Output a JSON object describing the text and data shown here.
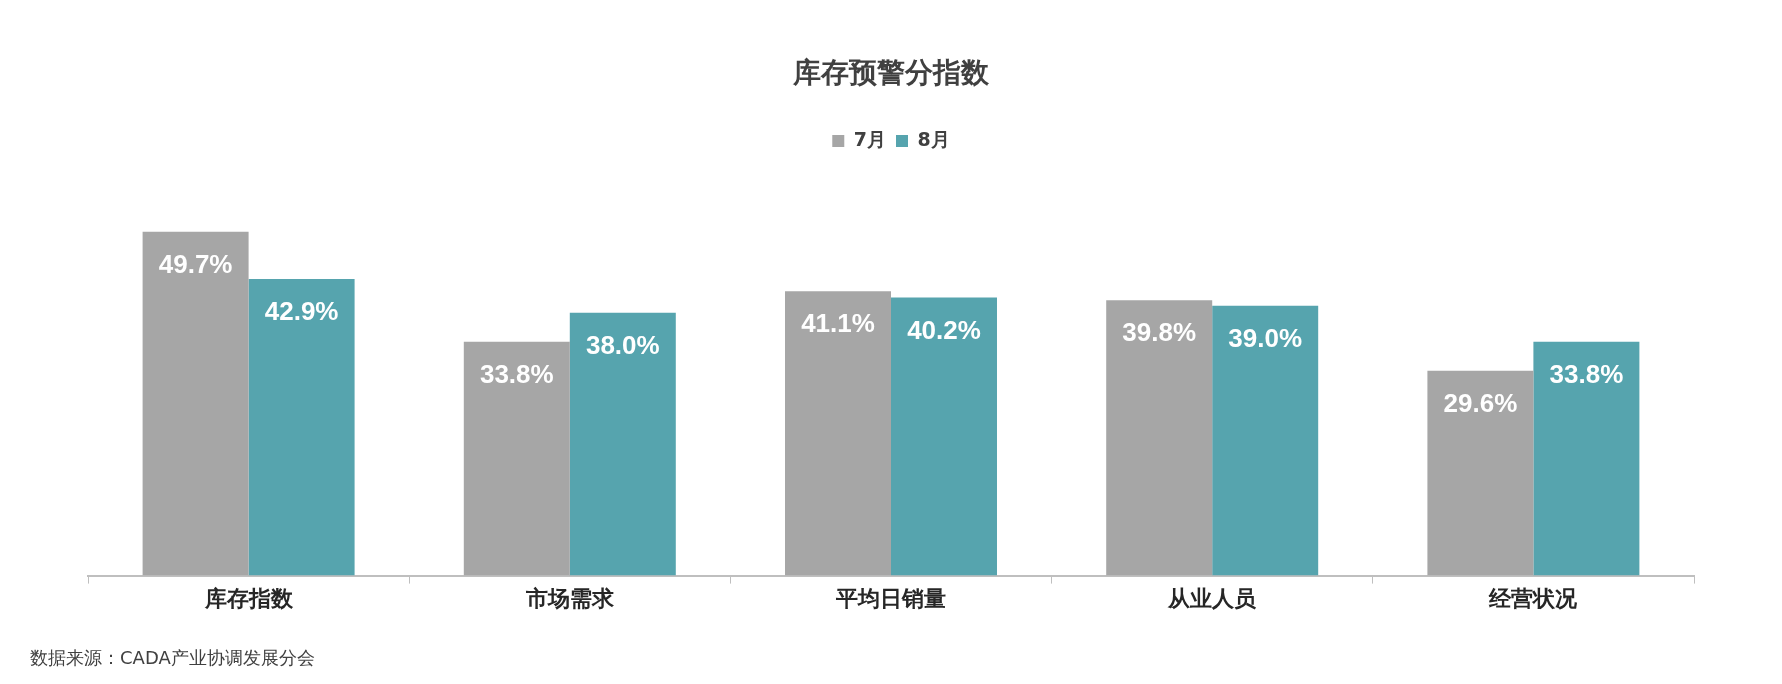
{
  "chart_data": {
    "type": "bar",
    "title": "库存预警分指数",
    "categories": [
      "库存指数",
      "市场需求",
      "平均日销量",
      "从业人员",
      "经营状况"
    ],
    "series": [
      {
        "name": "7月",
        "color": "#a6a6a6",
        "values": [
          49.7,
          33.8,
          41.1,
          39.8,
          29.6
        ],
        "value_labels": [
          "49.7%",
          "33.8%",
          "41.1%",
          "39.8%",
          "29.6%"
        ]
      },
      {
        "name": "8月",
        "color": "#56a4ae",
        "values": [
          42.9,
          38.0,
          40.2,
          39.0,
          33.8
        ],
        "value_labels": [
          "42.9%",
          "38.0%",
          "40.2%",
          "39.0%",
          "33.8%"
        ]
      }
    ],
    "legend": "top",
    "grid": false,
    "annotations": [
      "数据来源：CADA产业协调发展分会"
    ]
  }
}
